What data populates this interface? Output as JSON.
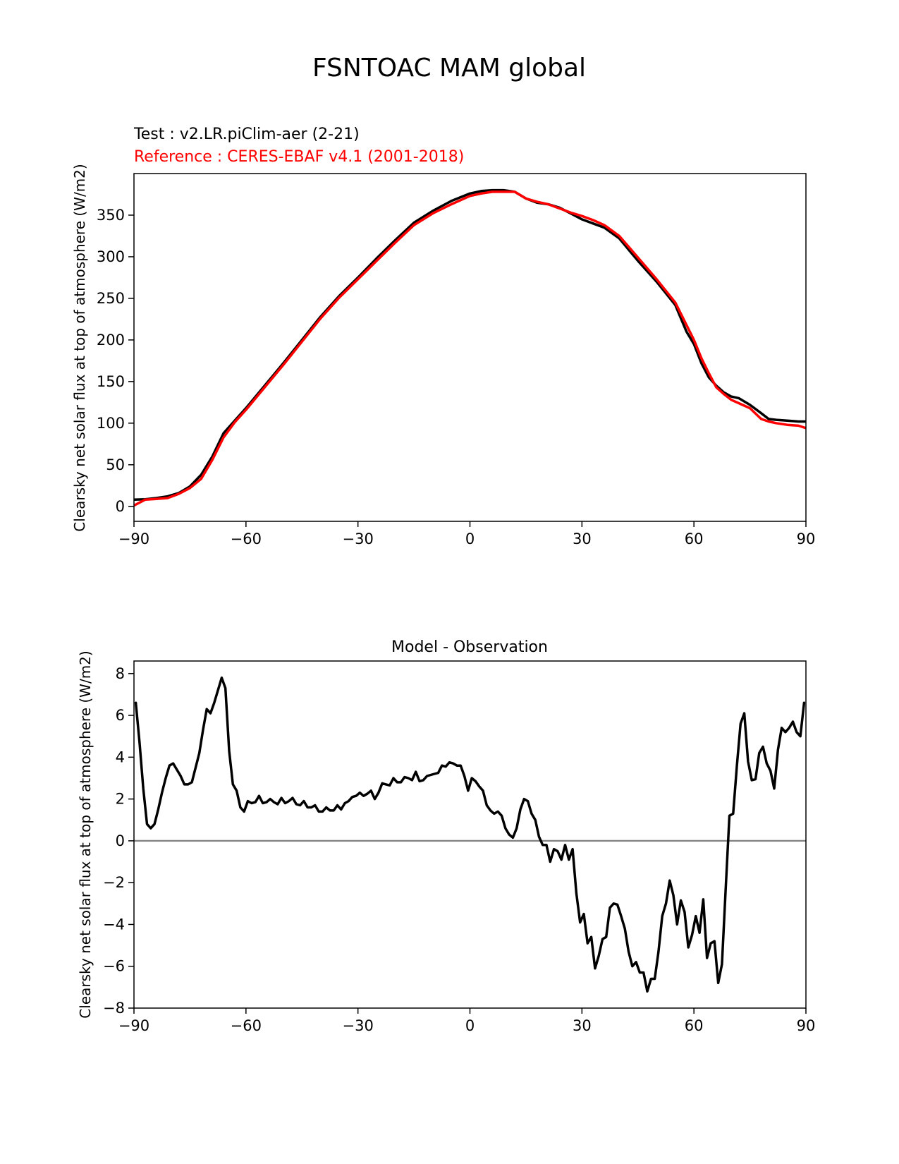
{
  "figure_title": "FSNTOAC MAM global",
  "chart_data": [
    {
      "type": "line",
      "test_label": "Test : v2.LR.piClim-aer (2-21)",
      "ref_label": "Reference : CERES-EBAF v4.1 (2001-2018)",
      "ylabel": "Clearsky net solar flux at top of atmosphere (W/m2)",
      "xlabel": "",
      "xlim": [
        -90,
        90
      ],
      "ylim": [
        -18,
        400
      ],
      "xticks": [
        -90,
        -60,
        -30,
        0,
        30,
        60,
        90
      ],
      "xtick_labels": [
        "−90",
        "−60",
        "−30",
        "0",
        "30",
        "60",
        "90"
      ],
      "yticks": [
        0,
        50,
        100,
        150,
        200,
        250,
        300,
        350
      ],
      "ytick_labels": [
        "0",
        "50",
        "100",
        "150",
        "200",
        "250",
        "300",
        "350"
      ],
      "colors": {
        "test": "#000000",
        "reference": "#ff0000"
      },
      "series": [
        {
          "name": "Test",
          "x": [
            -90,
            -87,
            -84,
            -81,
            -78,
            -75,
            -72,
            -69,
            -66,
            -63,
            -60,
            -55,
            -50,
            -45,
            -40,
            -35,
            -30,
            -25,
            -20,
            -15,
            -10,
            -5,
            0,
            3,
            6,
            9,
            12,
            15,
            18,
            21,
            24,
            27,
            30,
            33,
            36,
            40,
            45,
            50,
            55,
            58,
            60,
            62,
            64,
            66,
            68,
            70,
            72,
            75,
            78,
            80,
            82,
            85,
            88,
            90
          ],
          "values": [
            8,
            8.5,
            10,
            12,
            16,
            24,
            38,
            60,
            88,
            103,
            118,
            145,
            172,
            200,
            228,
            253,
            275,
            298,
            320,
            341,
            355,
            367,
            376,
            379,
            380,
            380,
            378,
            370,
            365,
            363,
            359,
            352,
            345,
            340,
            335,
            322,
            295,
            270,
            242,
            210,
            195,
            172,
            155,
            145,
            137,
            132,
            130,
            122,
            112,
            105,
            104,
            103,
            102,
            102
          ]
        },
        {
          "name": "Reference",
          "x": [
            -90,
            -87,
            -84,
            -81,
            -78,
            -75,
            -72,
            -69,
            -66,
            -63,
            -60,
            -55,
            -50,
            -45,
            -40,
            -35,
            -30,
            -25,
            -20,
            -15,
            -10,
            -5,
            0,
            3,
            6,
            9,
            12,
            15,
            18,
            21,
            24,
            27,
            30,
            33,
            36,
            40,
            45,
            50,
            55,
            58,
            60,
            62,
            64,
            66,
            68,
            70,
            72,
            75,
            78,
            80,
            82,
            85,
            88,
            90
          ],
          "values": [
            1,
            8,
            9,
            10,
            15,
            22,
            33,
            56,
            83,
            101,
            116,
            143,
            170,
            198,
            226,
            251,
            273,
            295,
            317,
            338,
            352,
            363,
            373,
            376,
            378,
            378,
            378,
            370,
            366,
            363,
            358,
            353,
            349,
            344,
            338,
            325,
            299,
            273,
            245,
            218,
            200,
            178,
            160,
            143,
            135,
            128,
            124,
            118,
            105,
            102,
            100,
            98,
            97,
            94
          ]
        }
      ]
    },
    {
      "type": "line",
      "title": "Model - Observation",
      "ylabel": "Clearsky net solar flux at top of atmosphere (W/m2)",
      "xlabel": "",
      "xlim": [
        -90,
        90
      ],
      "ylim": [
        -8,
        8.6
      ],
      "xticks": [
        -90,
        -60,
        -30,
        0,
        30,
        60,
        90
      ],
      "xtick_labels": [
        "−90",
        "−60",
        "−30",
        "0",
        "30",
        "60",
        "90"
      ],
      "yticks": [
        -8,
        -6,
        -4,
        -2,
        0,
        2,
        4,
        6,
        8
      ],
      "ytick_labels": [
        "−8",
        "−6",
        "−4",
        "−2",
        "0",
        "2",
        "4",
        "6",
        "8"
      ],
      "zero_line_color": "#808080",
      "series": [
        {
          "name": "Model - Observation",
          "color": "#000000",
          "x": [
            -89.5,
            -88.5,
            -87.5,
            -86.5,
            -85.5,
            -84.5,
            -83.5,
            -82.5,
            -81.5,
            -80.5,
            -79.5,
            -78.5,
            -77.5,
            -76.5,
            -75.5,
            -74.5,
            -73.5,
            -72.5,
            -71.5,
            -70.5,
            -69.5,
            -68.5,
            -67.5,
            -66.5,
            -65.5,
            -64.5,
            -63.5,
            -62.5,
            -61.5,
            -60.5,
            -59.5,
            -58.5,
            -57.5,
            -56.5,
            -55.5,
            -54.5,
            -53.5,
            -52.5,
            -51.5,
            -50.5,
            -49.5,
            -48.5,
            -47.5,
            -46.5,
            -45.5,
            -44.5,
            -43.5,
            -42.5,
            -41.5,
            -40.5,
            -39.5,
            -38.5,
            -37.5,
            -36.5,
            -35.5,
            -34.5,
            -33.5,
            -32.5,
            -31.5,
            -30.5,
            -29.5,
            -28.5,
            -27.5,
            -26.5,
            -25.5,
            -24.5,
            -23.5,
            -22.5,
            -21.5,
            -20.5,
            -19.5,
            -18.5,
            -17.5,
            -16.5,
            -15.5,
            -14.5,
            -13.5,
            -12.5,
            -11.5,
            -10.5,
            -9.5,
            -8.5,
            -7.5,
            -6.5,
            -5.5,
            -4.5,
            -3.5,
            -2.5,
            -1.5,
            -0.5,
            0.5,
            1.5,
            2.5,
            3.5,
            4.5,
            5.5,
            6.5,
            7.5,
            8.5,
            9.5,
            10.5,
            11.5,
            12.5,
            13.5,
            14.5,
            15.5,
            16.5,
            17.5,
            18.5,
            19.5,
            20.5,
            21.5,
            22.5,
            23.5,
            24.5,
            25.5,
            26.5,
            27.5,
            28.5,
            29.5,
            30.5,
            31.5,
            32.5,
            33.5,
            34.5,
            35.5,
            36.5,
            37.5,
            38.5,
            39.5,
            40.5,
            41.5,
            42.5,
            43.5,
            44.5,
            45.5,
            46.5,
            47.5,
            48.5,
            49.5,
            50.5,
            51.5,
            52.5,
            53.5,
            54.5,
            55.5,
            56.5,
            57.5,
            58.5,
            59.5,
            60.5,
            61.5,
            62.5,
            63.5,
            64.5,
            65.5,
            66.5,
            67.5,
            68.5,
            69.5,
            70.5,
            71.5,
            72.5,
            73.5,
            74.5,
            75.5,
            76.5,
            77.5,
            78.5,
            79.5,
            80.5,
            81.5,
            82.5,
            83.5,
            84.5,
            85.5,
            86.5,
            87.5,
            88.5,
            89.5
          ],
          "values": [
            6.6,
            4.7,
            2.5,
            0.8,
            0.6,
            0.8,
            1.5,
            2.3,
            3.0,
            3.6,
            3.7,
            3.4,
            3.1,
            2.7,
            2.7,
            2.8,
            3.5,
            4.2,
            5.3,
            6.3,
            6.1,
            6.6,
            7.2,
            7.8,
            7.3,
            4.3,
            2.7,
            2.4,
            1.6,
            1.4,
            1.9,
            1.8,
            1.85,
            2.15,
            1.8,
            1.85,
            2.0,
            1.85,
            1.75,
            2.05,
            1.8,
            1.9,
            2.05,
            1.75,
            1.7,
            1.9,
            1.6,
            1.6,
            1.7,
            1.4,
            1.4,
            1.6,
            1.45,
            1.45,
            1.7,
            1.5,
            1.8,
            1.9,
            2.1,
            2.15,
            2.3,
            2.15,
            2.25,
            2.4,
            2.0,
            2.3,
            2.75,
            2.7,
            2.65,
            3.0,
            2.8,
            2.8,
            3.05,
            3.0,
            2.9,
            3.3,
            2.85,
            2.9,
            3.1,
            3.15,
            3.2,
            3.25,
            3.6,
            3.55,
            3.75,
            3.7,
            3.6,
            3.6,
            3.1,
            2.4,
            3.0,
            2.85,
            2.6,
            2.4,
            1.7,
            1.45,
            1.3,
            1.4,
            1.2,
            0.6,
            0.3,
            0.15,
            0.6,
            1.5,
            2.0,
            1.9,
            1.3,
            1.0,
            0.2,
            -0.2,
            -0.2,
            -1.0,
            -0.4,
            -0.5,
            -0.9,
            -0.2,
            -0.9,
            -0.4,
            -2.5,
            -3.9,
            -3.5,
            -4.9,
            -4.6,
            -6.1,
            -5.5,
            -4.7,
            -4.6,
            -3.2,
            -3.0,
            -3.05,
            -3.6,
            -4.2,
            -5.3,
            -6.0,
            -5.8,
            -6.3,
            -6.3,
            -7.2,
            -6.6,
            -6.6,
            -5.3,
            -3.6,
            -3.0,
            -1.9,
            -2.6,
            -4.0,
            -2.85,
            -3.4,
            -5.1,
            -4.5,
            -3.6,
            -4.4,
            -2.8,
            -5.6,
            -4.9,
            -4.8,
            -6.8,
            -5.9,
            -2.3,
            1.2,
            1.3,
            3.6,
            5.6,
            6.1,
            3.8,
            2.9,
            2.95,
            4.2,
            4.5,
            3.7,
            3.35,
            2.5,
            4.35,
            5.4,
            5.2,
            5.4,
            5.7,
            5.2,
            5.0,
            6.6
          ]
        }
      ]
    }
  ]
}
